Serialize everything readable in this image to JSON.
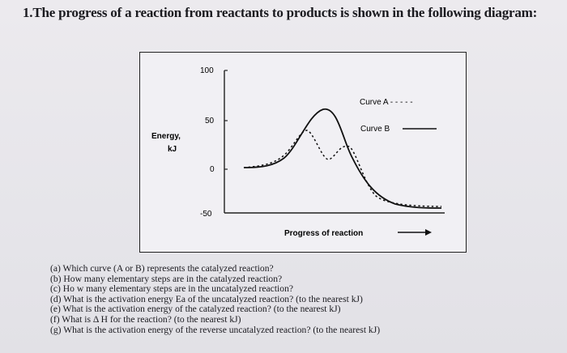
{
  "title": "1.The progress of a reaction from reactants to products is shown in the following diagram:",
  "figure": {
    "y_axis_label_line1": "Energy,",
    "y_axis_label_line2": "kJ",
    "ticks": [
      "100",
      "50",
      "0",
      "-50"
    ],
    "x_axis_label": "Progress of reaction",
    "legend_a": "Curve A - - - - -",
    "legend_b": "Curve B"
  },
  "questions": [
    "(a) Which curve (A or B) represents the catalyzed reaction?",
    "(b) How many elementary steps are in the catalyzed reaction?",
    "(c) Ho w many elementary steps are in the uncatalyzed reaction?",
    "(d) What is the activation energy Ea of the uncatalyzed reaction? (to the nearest kJ)",
    "(e) What is the activation energy of the catalyzed reaction? (to the nearest kJ)",
    "(f) What is Δ H for the reaction? (to the nearest kJ)",
    "(g) What is the activation energy of the reverse uncatalyzed reaction? (to the nearest kJ)"
  ],
  "chart_data": {
    "type": "line",
    "xlabel": "Progress of reaction",
    "ylabel": "Energy, kJ",
    "ylim": [
      -50,
      100
    ],
    "yticks": [
      100,
      50,
      0,
      -50
    ],
    "legend_position": "top-right",
    "series": [
      {
        "name": "Curve A",
        "style": "dashed",
        "description_points": [
          {
            "x": 0.0,
            "y": 0
          },
          {
            "x": 0.35,
            "y": 20
          },
          {
            "x": 0.42,
            "y": 35
          },
          {
            "x": 0.52,
            "y": 5
          },
          {
            "x": 0.58,
            "y": 25
          },
          {
            "x": 0.7,
            "y": -20
          },
          {
            "x": 1.0,
            "y": -40
          }
        ]
      },
      {
        "name": "Curve B",
        "style": "solid",
        "description_points": [
          {
            "x": 0.0,
            "y": 0
          },
          {
            "x": 0.3,
            "y": 5
          },
          {
            "x": 0.45,
            "y": 60
          },
          {
            "x": 0.6,
            "y": 0
          },
          {
            "x": 0.75,
            "y": -35
          },
          {
            "x": 1.0,
            "y": -40
          }
        ]
      }
    ]
  }
}
